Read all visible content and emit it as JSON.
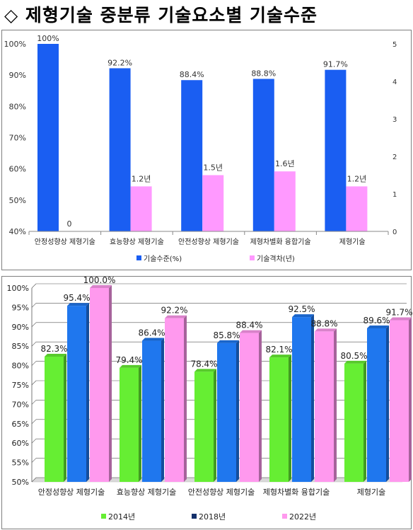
{
  "title": "◇ 제형기술 중분류 기술요소별 기술수준",
  "chart_data": [
    {
      "type": "bar",
      "categories": [
        "안정성향상 제형기술",
        "효능향상 제형기술",
        "안전성향상 제형기술",
        "제형차별화 융합기술",
        "제형기술"
      ],
      "series": [
        {
          "name": "기술수준(%)",
          "axis": "left",
          "values": [
            100,
            92.2,
            88.4,
            88.8,
            91.7
          ],
          "labels": [
            "100%",
            "92.2%",
            "88.4%",
            "88.8%",
            "91.7%"
          ],
          "color": "#1a5ef2"
        },
        {
          "name": "기술격차(년)",
          "axis": "right",
          "values": [
            0,
            1.2,
            1.5,
            1.6,
            1.2
          ],
          "labels": [
            "0",
            "1.2년",
            "1.5년",
            "1.6년",
            "1.2년"
          ],
          "color": "#ff99ff"
        }
      ],
      "ylim": [
        40,
        100
      ],
      "yticks": [
        "40%",
        "50%",
        "60%",
        "70%",
        "80%",
        "90%",
        "100%"
      ],
      "y2lim": [
        0,
        5
      ],
      "y2ticks": [
        "0",
        "1",
        "2",
        "3",
        "4",
        "5"
      ],
      "legend_position": "bottom",
      "grid": false
    },
    {
      "type": "bar",
      "categories": [
        "안정성향상 제형기술",
        "효능향상 제형기술",
        "안전성향상 제형기술",
        "제형차별화 융합기술",
        "제형기술"
      ],
      "series": [
        {
          "name": "2014년",
          "values": [
            82.3,
            79.4,
            78.4,
            82.1,
            80.5
          ],
          "labels": [
            "82.3%",
            "79.4%",
            "78.4%",
            "82.1%",
            "80.5%"
          ],
          "color": "#66ee33",
          "legend_color": "#66ee33"
        },
        {
          "name": "2018년",
          "values": [
            95.4,
            86.4,
            85.8,
            92.5,
            89.6
          ],
          "labels": [
            "95.4%",
            "86.4%",
            "85.8%",
            "92.5%",
            "89.6%"
          ],
          "color": "#1f77ee",
          "legend_color": "#13306b"
        },
        {
          "name": "2022년",
          "values": [
            100.0,
            92.2,
            88.4,
            88.8,
            91.7
          ],
          "labels": [
            "100.0%",
            "92.2%",
            "88.4%",
            "88.8%",
            "91.7%"
          ],
          "color": "#ff99ee",
          "legend_color": "#ff99ee"
        }
      ],
      "ylim": [
        50,
        100
      ],
      "yticks": [
        "50%",
        "55%",
        "60%",
        "65%",
        "70%",
        "75%",
        "80%",
        "85%",
        "90%",
        "95%",
        "100%"
      ],
      "legend_position": "bottom",
      "grid": true
    }
  ]
}
